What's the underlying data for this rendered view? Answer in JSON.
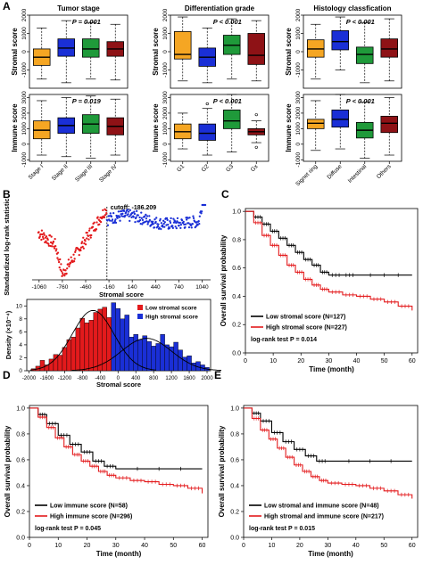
{
  "colors": {
    "orange": "#f5a623",
    "blue": "#1a2fd6",
    "green": "#1f9a3a",
    "darkred": "#8e1216",
    "red": "#e31a1c",
    "black": "#000000"
  },
  "panels": {
    "A": "A",
    "B": "B",
    "C": "C",
    "D": "D",
    "E": "E"
  },
  "chart_data": [
    {
      "id": "A-stromal-tumor",
      "type": "box",
      "column_title": "Tumor stage",
      "ylabel": "Stromal score",
      "pvalue": "P = 0.001",
      "categories": [
        "Stage I",
        "Stage II",
        "Stage III",
        "Stage IV"
      ],
      "yticks": [
        -1000,
        0,
        1000,
        2000
      ],
      "ylim": [
        -2000,
        2000
      ],
      "boxes": [
        {
          "min": -1500,
          "q1": -750,
          "median": -300,
          "q3": 150,
          "max": 1300,
          "color": "orange"
        },
        {
          "min": -1700,
          "q1": -250,
          "median": 200,
          "q3": 700,
          "max": 1700,
          "color": "blue"
        },
        {
          "min": -1500,
          "q1": -300,
          "median": 150,
          "q3": 700,
          "max": 1600,
          "color": "green"
        },
        {
          "min": -1550,
          "q1": -250,
          "median": 150,
          "q3": 550,
          "max": 1500,
          "color": "darkred"
        }
      ]
    },
    {
      "id": "A-stromal-diff",
      "type": "box",
      "column_title": "Differentiation grade",
      "ylabel": "Stromal score",
      "pvalue": "P < 0.001",
      "categories": [
        "G1",
        "G2",
        "G3",
        "Gx"
      ],
      "yticks": [
        -1000,
        0,
        1000,
        2000
      ],
      "ylim": [
        -2000,
        2000
      ],
      "boxes": [
        {
          "min": -1600,
          "q1": -400,
          "median": -150,
          "q3": 1100,
          "max": 1900,
          "color": "orange"
        },
        {
          "min": -1700,
          "q1": -800,
          "median": -300,
          "q3": 200,
          "max": 1300,
          "color": "blue"
        },
        {
          "min": -1500,
          "q1": -150,
          "median": 350,
          "q3": 900,
          "max": 1800,
          "color": "green"
        },
        {
          "min": -1600,
          "q1": -700,
          "median": -200,
          "q3": 1000,
          "max": 1700,
          "color": "darkred"
        }
      ]
    },
    {
      "id": "A-stromal-hist",
      "type": "box",
      "column_title": "Histology classfication",
      "ylabel": "Stromal score",
      "pvalue": "P < 0.001",
      "categories": [
        "Signet ring",
        "Diffuse",
        "Intestinal",
        "Others"
      ],
      "yticks": [
        -1000,
        0,
        1000,
        2000
      ],
      "ylim": [
        -2000,
        2000
      ],
      "boxes": [
        {
          "min": -1500,
          "q1": -300,
          "median": 150,
          "q3": 650,
          "max": 1500,
          "color": "orange"
        },
        {
          "min": -1000,
          "q1": 100,
          "median": 550,
          "q3": 1150,
          "max": 1900,
          "color": "blue"
        },
        {
          "min": -1700,
          "q1": -650,
          "median": -150,
          "q3": 250,
          "max": 1600,
          "color": "green"
        },
        {
          "min": -1600,
          "q1": -300,
          "median": 150,
          "q3": 700,
          "max": 1800,
          "color": "darkred"
        }
      ]
    },
    {
      "id": "A-immune-tumor",
      "type": "box",
      "ylabel": "Immune score",
      "pvalue": "P = 0.019",
      "categories": [
        "Stage I",
        "Stage II",
        "Stage III",
        "Stage IV"
      ],
      "yticks": [
        -1000,
        0,
        1000,
        2000,
        3000
      ],
      "ylim": [
        -1100,
        3200
      ],
      "boxes": [
        {
          "min": -700,
          "q1": 350,
          "median": 900,
          "q3": 1500,
          "max": 2800,
          "color": "orange"
        },
        {
          "min": -800,
          "q1": 700,
          "median": 1200,
          "q3": 1700,
          "max": 3000,
          "color": "blue"
        },
        {
          "min": -900,
          "q1": 700,
          "median": 1300,
          "q3": 1900,
          "max": 3100,
          "color": "green"
        },
        {
          "min": -700,
          "q1": 600,
          "median": 1150,
          "q3": 1700,
          "max": 2900,
          "color": "darkred"
        }
      ]
    },
    {
      "id": "A-immune-diff",
      "type": "box",
      "ylabel": "Immune score",
      "pvalue": "P < 0.001",
      "categories": [
        "G1",
        "G2",
        "G3",
        "Gx"
      ],
      "yticks": [
        -1000,
        0,
        1000,
        2000,
        3000
      ],
      "ylim": [
        -1100,
        3200
      ],
      "boxes": [
        {
          "min": -300,
          "q1": 350,
          "median": 800,
          "q3": 1300,
          "max": 2000,
          "color": "orange"
        },
        {
          "min": -700,
          "q1": 250,
          "median": 700,
          "q3": 1300,
          "max": 2300,
          "color": "blue"
        },
        {
          "min": -500,
          "q1": 1000,
          "median": 1500,
          "q3": 2200,
          "max": 3200,
          "color": "green"
        },
        {
          "min": 100,
          "q1": 600,
          "median": 800,
          "q3": 1000,
          "max": 1500,
          "color": "darkred"
        }
      ],
      "outliers": [
        [
          1,
          2600
        ],
        [
          3,
          1900
        ],
        [
          3,
          -200
        ]
      ]
    },
    {
      "id": "A-immune-hist",
      "type": "box",
      "ylabel": "Immune score",
      "pvalue": "P < 0.001",
      "categories": [
        "Signet ring",
        "Diffuse",
        "Intestinal",
        "Others"
      ],
      "yticks": [
        -1000,
        0,
        1000,
        2000,
        3000
      ],
      "ylim": [
        -1100,
        3200
      ],
      "boxes": [
        {
          "min": -400,
          "q1": 1000,
          "median": 1350,
          "q3": 1600,
          "max": 2800,
          "color": "orange"
        },
        {
          "min": -300,
          "q1": 1100,
          "median": 1600,
          "q3": 2200,
          "max": 3200,
          "color": "blue"
        },
        {
          "min": -900,
          "q1": 400,
          "median": 900,
          "q3": 1400,
          "max": 2700,
          "color": "green"
        },
        {
          "min": -700,
          "q1": 750,
          "median": 1350,
          "q3": 1800,
          "max": 3000,
          "color": "darkred"
        }
      ]
    },
    {
      "id": "B-logrank",
      "type": "scatter",
      "ylabel": "Standardized log-rank statistic",
      "xlabel": "Stromal score",
      "xticks": [
        -1060,
        -760,
        -460,
        -160,
        140,
        440,
        740,
        1040
      ],
      "xlim": [
        -1150,
        1150
      ],
      "ylim": [
        -3,
        3
      ],
      "cutoff_label": "cutoff: -186.209",
      "cutoff": -186.209
    },
    {
      "id": "B-density",
      "type": "bar",
      "xlabel": "Stromal score",
      "ylabel": "Density (×10⁻⁴)",
      "xticks": [
        -2000,
        -1600,
        -1200,
        -800,
        -400,
        0,
        400,
        800,
        1200,
        1600,
        2000
      ],
      "yticks": [
        0,
        2,
        4,
        6,
        8,
        10
      ],
      "xlim": [
        -2050,
        2080
      ],
      "ylim": [
        0,
        11
      ],
      "bin_start": -1950,
      "bin_width": 100,
      "values": [
        0.3,
        0.7,
        1.6,
        0.9,
        1.8,
        2.5,
        2.4,
        3.6,
        4.8,
        5.2,
        6.6,
        8.1,
        7.4,
        7.8,
        9.0,
        9.5,
        9.8,
        8.2,
        10.5,
        9.6,
        8.0,
        8.6,
        5.2,
        5.6,
        4.8,
        5.4,
        4.5,
        3.8,
        4.2,
        5.6,
        4.0,
        3.7,
        4.4,
        3.2,
        2.1,
        2.3,
        1.2,
        1.4,
        0.9,
        0.5
      ],
      "series": [
        {
          "name": "Low stromal score",
          "color": "red"
        },
        {
          "name": "High stromal score",
          "color": "blue"
        }
      ]
    },
    {
      "id": "C-km",
      "type": "line",
      "xlabel": "Time (month)",
      "ylabel": "Overall survival probability",
      "xticks": [
        0,
        10,
        20,
        30,
        40,
        50,
        60
      ],
      "yticks": [
        0.0,
        0.2,
        0.4,
        0.6,
        0.8,
        1.0
      ],
      "xlim": [
        0,
        62
      ],
      "ylim": [
        0,
        1.02
      ],
      "test": "log-rank test P = 0.014",
      "series": [
        {
          "name": "Low stromal score (N=127)",
          "color": "black",
          "x": [
            0,
            3,
            6,
            9,
            12,
            15,
            18,
            21,
            24,
            27,
            30,
            35,
            40,
            60
          ],
          "y": [
            1.0,
            0.96,
            0.91,
            0.86,
            0.81,
            0.76,
            0.71,
            0.66,
            0.62,
            0.57,
            0.55,
            0.55,
            0.55,
            0.55
          ]
        },
        {
          "name": "High stromal score (N=227)",
          "color": "red",
          "x": [
            0,
            3,
            6,
            9,
            12,
            15,
            18,
            21,
            24,
            27,
            30,
            35,
            40,
            45,
            50,
            55,
            60
          ],
          "y": [
            1.0,
            0.92,
            0.83,
            0.76,
            0.69,
            0.62,
            0.57,
            0.52,
            0.48,
            0.45,
            0.43,
            0.41,
            0.4,
            0.38,
            0.36,
            0.33,
            0.3
          ]
        }
      ]
    },
    {
      "id": "D-km",
      "type": "line",
      "xlabel": "Time (month)",
      "ylabel": "Overall survival probability",
      "xticks": [
        0,
        10,
        20,
        30,
        40,
        50,
        60
      ],
      "yticks": [
        0.0,
        0.2,
        0.4,
        0.6,
        0.8,
        1.0
      ],
      "xlim": [
        0,
        62
      ],
      "ylim": [
        0,
        1.02
      ],
      "test": "log-rank test P = 0.045",
      "series": [
        {
          "name": "Low immune score (N=58)",
          "color": "black",
          "x": [
            0,
            3,
            6,
            10,
            14,
            18,
            22,
            26,
            30,
            60
          ],
          "y": [
            1.0,
            0.95,
            0.88,
            0.79,
            0.72,
            0.66,
            0.59,
            0.55,
            0.53,
            0.53
          ]
        },
        {
          "name": "High immune score (N=296)",
          "color": "red",
          "x": [
            0,
            3,
            6,
            9,
            12,
            15,
            18,
            21,
            24,
            27,
            30,
            35,
            40,
            45,
            50,
            55,
            60
          ],
          "y": [
            1.0,
            0.93,
            0.85,
            0.77,
            0.7,
            0.64,
            0.59,
            0.55,
            0.51,
            0.48,
            0.46,
            0.44,
            0.43,
            0.41,
            0.4,
            0.38,
            0.34
          ]
        }
      ]
    },
    {
      "id": "E-km",
      "type": "line",
      "xlabel": "Time (month)",
      "ylabel": "Overall survival probability",
      "xticks": [
        0,
        10,
        20,
        30,
        40,
        50,
        60
      ],
      "yticks": [
        0.0,
        0.2,
        0.4,
        0.6,
        0.8,
        1.0
      ],
      "xlim": [
        0,
        62
      ],
      "ylim": [
        0,
        1.02
      ],
      "test": "log-rank test P = 0.015",
      "series": [
        {
          "name": "Low stromal and immune score (N=48)",
          "color": "black",
          "x": [
            0,
            3,
            6,
            10,
            14,
            18,
            22,
            26,
            30,
            60
          ],
          "y": [
            1.0,
            0.96,
            0.9,
            0.81,
            0.74,
            0.68,
            0.63,
            0.59,
            0.59,
            0.59
          ]
        },
        {
          "name": "High stromal and immune score (N=217)",
          "color": "red",
          "x": [
            0,
            3,
            6,
            9,
            12,
            15,
            18,
            21,
            24,
            27,
            30,
            35,
            40,
            45,
            50,
            55,
            60
          ],
          "y": [
            1.0,
            0.92,
            0.83,
            0.76,
            0.69,
            0.62,
            0.56,
            0.51,
            0.47,
            0.44,
            0.42,
            0.41,
            0.4,
            0.38,
            0.36,
            0.33,
            0.3
          ]
        }
      ]
    }
  ]
}
